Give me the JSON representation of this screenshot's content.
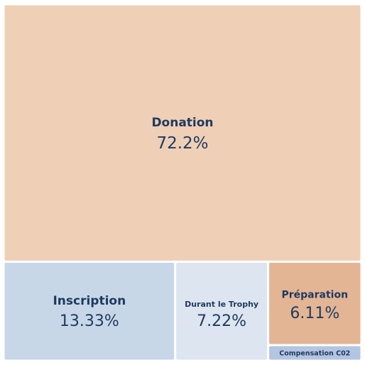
{
  "chart_data": {
    "type": "treemap",
    "title": "",
    "categories": [
      "Donation",
      "Inscription",
      "Durant le Trophy",
      "Préparation",
      "Compensation C02"
    ],
    "values": [
      72.2,
      13.33,
      7.22,
      6.11,
      1.14
    ],
    "value_labels": [
      "72.2%",
      "13.33%",
      "7.22%",
      "6.11%",
      ""
    ],
    "colors": [
      "#efcfb6",
      "#c8d7e8",
      "#dde5f0",
      "#e3b595",
      "#b3c5e2"
    ],
    "label_color": "#1e3a5f"
  }
}
